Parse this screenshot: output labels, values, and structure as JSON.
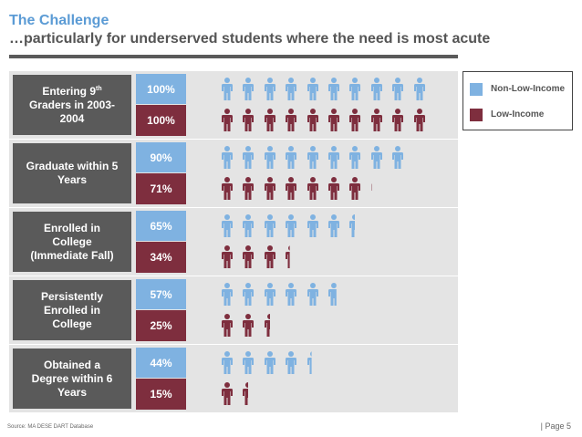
{
  "header": {
    "title": "The Challenge",
    "subtitle": "…particularly for underserved students where the need is most acute"
  },
  "legend": {
    "items": [
      {
        "label": "Non-Low-Income",
        "color": "#7fb2e1"
      },
      {
        "label": "Low-Income",
        "color": "#7e2e3e"
      }
    ]
  },
  "footer": {
    "source": "Source: MA DESE DART Database",
    "page": "| Page 5"
  },
  "colors": {
    "non_low_income": "#7fb2e1",
    "low_income": "#7e2e3e",
    "label_box": "#5a5a5a",
    "group_bg": "#e4e4e4",
    "title": "#5b9bd5"
  },
  "chart_data": {
    "type": "bar",
    "categories": [
      "Entering 9th Graders in 2003-2004",
      "Graduate within 5 Years",
      "Enrolled in College (Immediate Fall)",
      "Persistently Enrolled in College",
      "Obtained a Degree within 6 Years"
    ],
    "series": [
      {
        "name": "Non-Low-Income",
        "values": [
          100,
          90,
          65,
          57,
          44
        ],
        "labels": [
          "100%",
          "90%",
          "65%",
          "57%",
          "44%"
        ]
      },
      {
        "name": "Low-Income",
        "values": [
          100,
          71,
          34,
          25,
          15
        ],
        "labels": [
          "100%",
          "71%",
          "34%",
          "25%",
          "15%"
        ]
      }
    ],
    "unit": "%",
    "ylim": [
      0,
      100
    ],
    "icons_per_full_row": 10,
    "icon": "person-icon"
  },
  "groups": [
    {
      "label_main": "Entering 9",
      "label_sup": "th",
      "label_rest": " Graders in 2003-2004"
    },
    {
      "label_main": "Graduate within 5 Years",
      "label_sup": "",
      "label_rest": ""
    },
    {
      "label_main": "Enrolled in College (Immediate Fall)",
      "label_sup": "",
      "label_rest": ""
    },
    {
      "label_main": "Persistently Enrolled in College",
      "label_sup": "",
      "label_rest": ""
    },
    {
      "label_main": "Obtained a Degree within 6 Years",
      "label_sup": "",
      "label_rest": ""
    }
  ]
}
